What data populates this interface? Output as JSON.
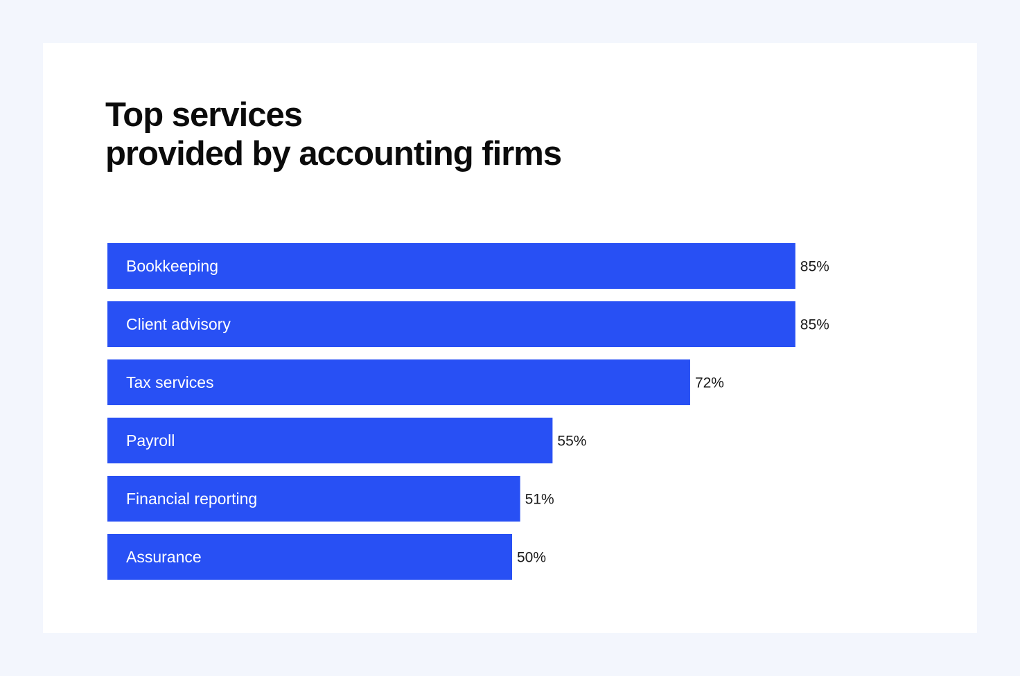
{
  "colors": {
    "page_background": "#f3f6fd",
    "card_background": "#ffffff",
    "bar": "#2850f4",
    "title": "#0b0b0b",
    "bar_label": "#ffffff",
    "value_label": "#1a1a1a"
  },
  "chart_data": {
    "type": "bar",
    "orientation": "horizontal",
    "title": "Top services provided by accounting firms",
    "title_lines": [
      "Top services",
      "provided by accounting firms"
    ],
    "categories": [
      "Bookkeeping",
      "Client advisory",
      "Tax services",
      "Payroll",
      "Financial reporting",
      "Assurance"
    ],
    "values": [
      85,
      85,
      72,
      55,
      51,
      50
    ],
    "value_labels": [
      "85%",
      "85%",
      "72%",
      "55%",
      "51%",
      "50%"
    ],
    "unit": "%",
    "xlim": [
      0,
      100
    ],
    "grid": false,
    "legend": "none"
  }
}
